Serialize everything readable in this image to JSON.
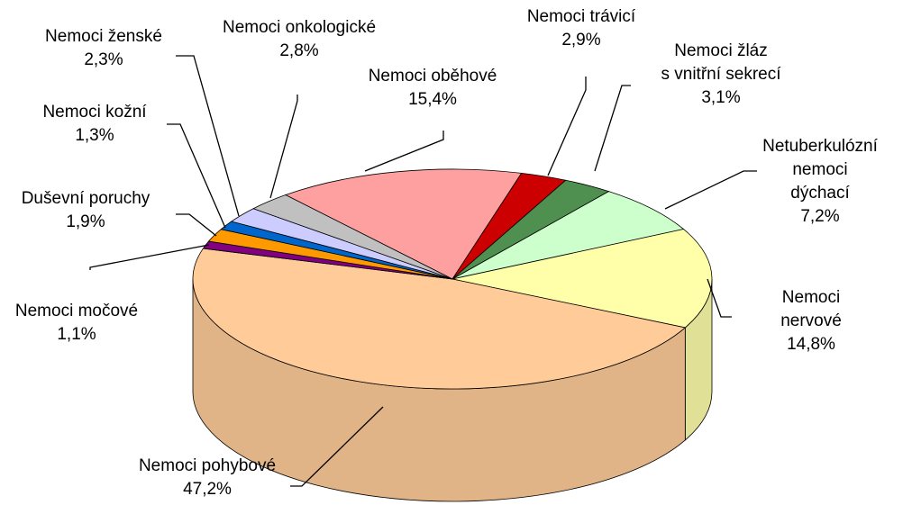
{
  "chart_data": {
    "type": "pie3d",
    "categories": [
      "Nemoci oběhové",
      "Nemoci trávicí",
      "Nemoci žláz\ns vnitřní sekrecí",
      "Netuberkulózní\nnemoci\ndýchací",
      "Nemoci nervové",
      "Nemoci pohybové",
      "Nemoci močové",
      "Duševní poruchy",
      "Nemoci kožní",
      "Nemoci ženské",
      "Nemoci onkologické"
    ],
    "values": [
      15.4,
      2.9,
      3.1,
      7.2,
      14.8,
      47.2,
      1.1,
      1.9,
      1.3,
      2.3,
      2.8
    ],
    "value_labels": [
      "15,4%",
      "2,9%",
      "3,1%",
      "7,2%",
      "14,8%",
      "47,2%",
      "1,1%",
      "1,9%",
      "1,3%",
      "2,3%",
      "2,8%"
    ],
    "colors": [
      "#ffa0a0",
      "#cc0000",
      "#4f8f4f",
      "#ccffcc",
      "#ffffaa",
      "#ffcc99",
      "#800080",
      "#ff9900",
      "#0066cc",
      "#ccccff",
      "#c0c0c0"
    ]
  }
}
